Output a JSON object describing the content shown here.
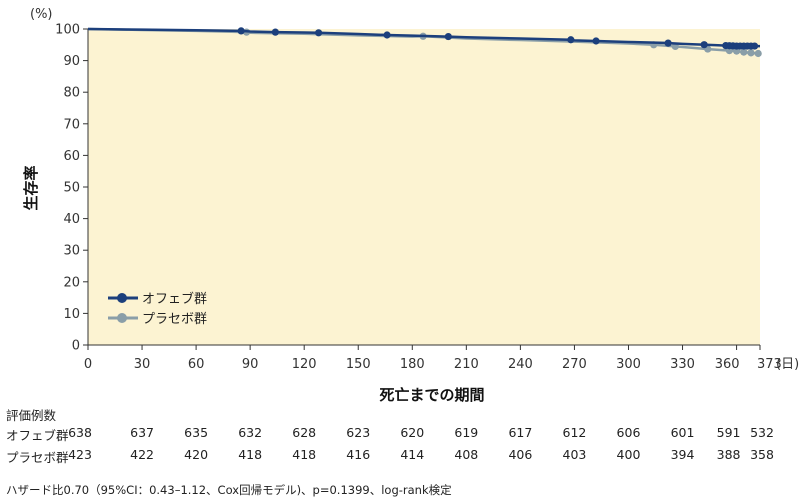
{
  "chart_data": {
    "type": "line",
    "subtype": "kaplan-meier",
    "ylabel": "生存率",
    "yunit": "(%)",
    "xlabel": "死亡までの期間",
    "xunit": "(日)",
    "xlim": [
      0,
      373
    ],
    "ylim": [
      0,
      100
    ],
    "xticks": [
      0,
      30,
      60,
      90,
      120,
      150,
      180,
      210,
      240,
      270,
      300,
      330,
      360,
      373
    ],
    "yticks": [
      0,
      10,
      20,
      30,
      40,
      50,
      60,
      70,
      80,
      90,
      100
    ],
    "grid": false,
    "background": "#fcf3d2",
    "legend_position": "bottom-left",
    "series": [
      {
        "name": "オフェブ群",
        "color": "#1c3f7c",
        "x": [
          0,
          30,
          60,
          85,
          90,
          104,
          120,
          128,
          150,
          166,
          180,
          200,
          210,
          240,
          268,
          270,
          282,
          300,
          320,
          330,
          348,
          356,
          360,
          373
        ],
        "y": [
          100,
          99.8,
          99.6,
          99.4,
          99.2,
          99.0,
          98.9,
          98.8,
          98.4,
          98.1,
          97.9,
          97.6,
          97.4,
          97.0,
          96.6,
          96.4,
          96.2,
          95.9,
          95.6,
          95.3,
          94.9,
          94.7,
          94.6,
          94.6
        ],
        "censor_x": [
          85,
          104,
          128,
          166,
          200,
          268,
          282,
          322,
          342,
          354,
          356,
          358,
          360,
          362,
          364,
          366,
          368,
          370
        ]
      },
      {
        "name": "プラセボ群",
        "color": "#8a9ea8",
        "x": [
          0,
          30,
          60,
          88,
          90,
          120,
          150,
          180,
          186,
          210,
          240,
          270,
          300,
          314,
          330,
          345,
          355,
          360,
          365,
          373
        ],
        "y": [
          100,
          99.7,
          99.4,
          99.0,
          98.8,
          98.5,
          98.0,
          97.6,
          97.7,
          97.0,
          96.5,
          96.0,
          95.4,
          95.0,
          94.3,
          93.6,
          93.2,
          93.0,
          92.6,
          92.2
        ],
        "censor_x": [
          88,
          186,
          314,
          326,
          344,
          356,
          360,
          364,
          368,
          372
        ]
      }
    ]
  },
  "risk_table": {
    "title": "評価例数",
    "rows": [
      {
        "label": "オフェブ群",
        "values": [
          "638",
          "637",
          "635",
          "632",
          "628",
          "623",
          "620",
          "619",
          "617",
          "612",
          "606",
          "601",
          "591",
          "532"
        ]
      },
      {
        "label": "プラセボ群",
        "values": [
          "423",
          "422",
          "420",
          "418",
          "418",
          "416",
          "414",
          "408",
          "406",
          "403",
          "400",
          "394",
          "388",
          "358"
        ]
      }
    ]
  },
  "footnote": "ハザード比0.70（95%CI：0.43–1.12、Cox回帰モデル)、p=0.1399、log-rank検定"
}
